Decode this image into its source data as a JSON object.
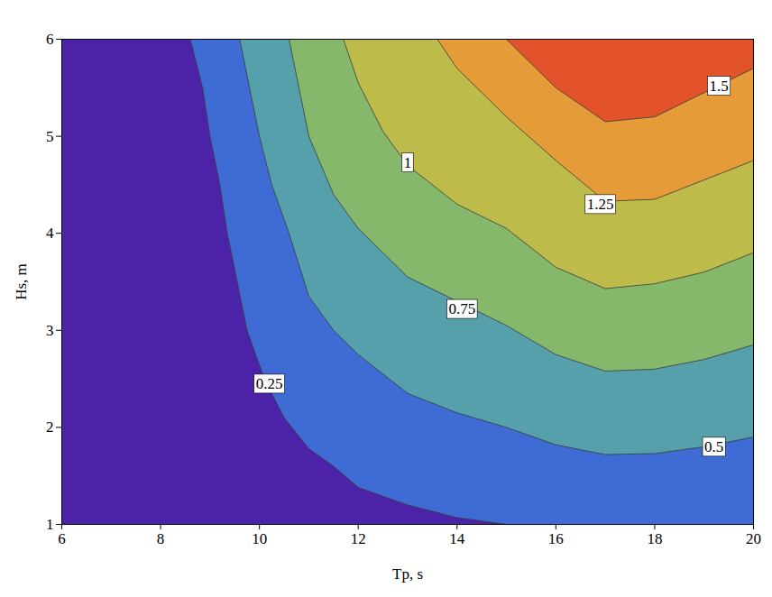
{
  "chart_data": {
    "type": "contour",
    "x_label": "Tp, s",
    "y_label": "Hs, m",
    "xlim": [
      6,
      20
    ],
    "xticks": [
      6,
      8,
      10,
      12,
      14,
      16,
      18,
      20
    ],
    "ylim": [
      1,
      6
    ],
    "yticks": [
      1,
      2,
      3,
      4,
      5,
      6
    ],
    "color": "#4b22a8",
    "data_labels": true,
    "levels": [
      {
        "value": 0.25,
        "color": "#3f6bd4",
        "label_at": [
          10.2,
          2.45
        ],
        "points": [
          [
            8.6,
            6
          ],
          [
            8.85,
            5.5
          ],
          [
            9.0,
            5.0
          ],
          [
            9.2,
            4.5
          ],
          [
            9.35,
            4.0
          ],
          [
            9.55,
            3.5
          ],
          [
            9.75,
            3.0
          ],
          [
            10.1,
            2.5
          ],
          [
            10.5,
            2.1
          ],
          [
            11.0,
            1.78
          ],
          [
            11.5,
            1.6
          ],
          [
            12.0,
            1.38
          ],
          [
            13.0,
            1.2
          ],
          [
            14.0,
            1.07
          ],
          [
            15.0,
            1
          ]
        ]
      },
      {
        "value": 0.5,
        "color": "#55a0aa",
        "label_at": [
          19.2,
          1.8
        ],
        "points": [
          [
            9.6,
            6
          ],
          [
            9.8,
            5.5
          ],
          [
            10.0,
            5.0
          ],
          [
            10.25,
            4.5
          ],
          [
            10.6,
            4.0
          ],
          [
            11.0,
            3.35
          ],
          [
            11.5,
            3.0
          ],
          [
            12.0,
            2.75
          ],
          [
            13.0,
            2.35
          ],
          [
            14.0,
            2.15
          ],
          [
            15.0,
            2.0
          ],
          [
            16.0,
            1.82
          ],
          [
            17.0,
            1.72
          ],
          [
            18.0,
            1.73
          ],
          [
            19.0,
            1.8
          ],
          [
            20,
            1.9
          ]
        ]
      },
      {
        "value": 0.75,
        "color": "#86b86c",
        "label_at": [
          14.1,
          3.22
        ],
        "points": [
          [
            10.6,
            6
          ],
          [
            10.8,
            5.5
          ],
          [
            11.0,
            5.0
          ],
          [
            11.5,
            4.4
          ],
          [
            12.0,
            4.05
          ],
          [
            13.0,
            3.55
          ],
          [
            14.0,
            3.3
          ],
          [
            15.0,
            3.05
          ],
          [
            16.0,
            2.75
          ],
          [
            17.0,
            2.58
          ],
          [
            18.0,
            2.6
          ],
          [
            19.0,
            2.7
          ],
          [
            20,
            2.85
          ]
        ]
      },
      {
        "value": 1,
        "color": "#bdbb4a",
        "label_at": [
          13.0,
          4.73
        ],
        "points": [
          [
            11.7,
            6
          ],
          [
            12.0,
            5.55
          ],
          [
            12.5,
            5.05
          ],
          [
            13.0,
            4.7
          ],
          [
            14.0,
            4.3
          ],
          [
            15.0,
            4.05
          ],
          [
            16.0,
            3.65
          ],
          [
            17.0,
            3.43
          ],
          [
            18.0,
            3.48
          ],
          [
            19.0,
            3.6
          ],
          [
            20,
            3.8
          ]
        ]
      },
      {
        "value": 1.25,
        "color": "#e59c38",
        "label_at": [
          16.9,
          4.3
        ],
        "points": [
          [
            13.6,
            6
          ],
          [
            14.0,
            5.7
          ],
          [
            15.0,
            5.2
          ],
          [
            16.0,
            4.75
          ],
          [
            17.0,
            4.33
          ],
          [
            18.0,
            4.35
          ],
          [
            19.0,
            4.55
          ],
          [
            20,
            4.75
          ]
        ]
      },
      {
        "value": 1.5,
        "color": "#e2522b",
        "label_at": [
          19.3,
          5.52
        ],
        "points": [
          [
            15.0,
            6
          ],
          [
            16.0,
            5.5
          ],
          [
            17.0,
            5.15
          ],
          [
            18.0,
            5.2
          ],
          [
            19.0,
            5.45
          ],
          [
            20,
            5.7
          ]
        ]
      }
    ]
  }
}
